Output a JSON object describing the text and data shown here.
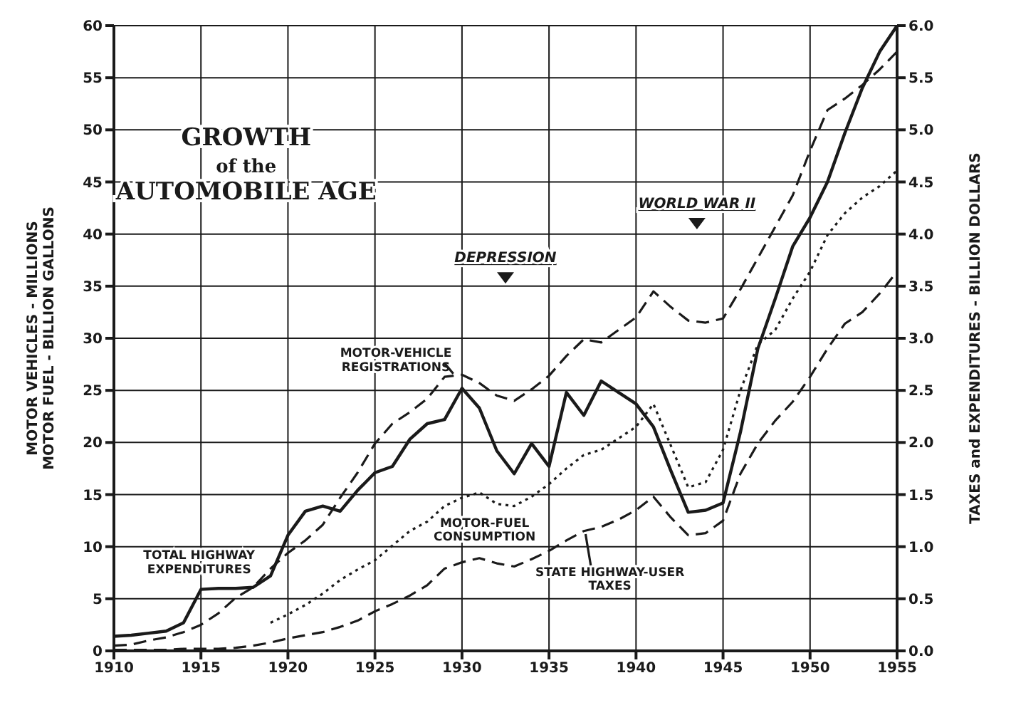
{
  "chart_data": {
    "type": "line",
    "title": "GROWTH\nof the\nAUTOMOBILE AGE",
    "ylabel": "MOTOR VEHICLES - MILLIONS\nMOTOR FUEL - BILLION GALLONS",
    "y2label": "TAXES and EXPENDITURES - BILLION DOLLARS",
    "annotations": [
      "DEPRESSION",
      "WORLD WAR II"
    ],
    "x": [
      1910,
      1911,
      1912,
      1913,
      1914,
      1915,
      1916,
      1917,
      1918,
      1919,
      1920,
      1921,
      1922,
      1923,
      1924,
      1925,
      1926,
      1927,
      1928,
      1929,
      1930,
      1931,
      1932,
      1933,
      1934,
      1935,
      1936,
      1937,
      1938,
      1939,
      1940,
      1941,
      1942,
      1943,
      1944,
      1945,
      1946,
      1947,
      1948,
      1949,
      1950,
      1951,
      1952,
      1953,
      1954,
      1955
    ],
    "series": [
      {
        "name": "MOTOR-VEHICLE\nREGISTRATIONS",
        "color": "#1a1a1a",
        "line_style": "dashed",
        "values": [
          0.5,
          0.6,
          1.0,
          1.3,
          1.8,
          2.5,
          3.6,
          5.1,
          6.1,
          7.9,
          9.4,
          10.6,
          12.1,
          14.7,
          17.1,
          19.9,
          21.8,
          22.9,
          24.2,
          26.3,
          26.5,
          25.7,
          24.5,
          24.0,
          25.1,
          26.4,
          28.3,
          29.9,
          29.6,
          30.8,
          32.0,
          34.5,
          33.0,
          31.7,
          31.5,
          31.9,
          34.7,
          37.7,
          40.7,
          43.7,
          48.0,
          51.9,
          53.0,
          54.3,
          55.8,
          57.5
        ]
      },
      {
        "name": "MOTOR-FUEL\nCONSUMPTION",
        "color": "#1a1a1a",
        "line_style": "dotted",
        "values": [
          null,
          null,
          null,
          null,
          null,
          null,
          null,
          null,
          null,
          2.7,
          3.5,
          4.4,
          5.5,
          6.8,
          7.8,
          8.7,
          10.1,
          11.5,
          12.4,
          13.9,
          14.7,
          15.2,
          14.1,
          13.9,
          14.8,
          16.0,
          17.5,
          18.8,
          19.3,
          20.4,
          21.5,
          23.7,
          19.7,
          15.7,
          16.2,
          19.3,
          25.0,
          29.4,
          30.8,
          33.8,
          36.4,
          39.9,
          42.0,
          43.5,
          44.6,
          46.1
        ]
      },
      {
        "name": "TOTAL HIGHWAY\nEXPENDITURES",
        "color": "#1a1a1a",
        "line_style": "solid",
        "axis": "y2",
        "values": [
          0.14,
          0.15,
          0.17,
          0.19,
          0.27,
          0.59,
          0.6,
          0.6,
          0.61,
          0.72,
          1.11,
          1.34,
          1.39,
          1.34,
          1.54,
          1.71,
          1.77,
          2.03,
          2.18,
          2.22,
          2.52,
          2.33,
          1.92,
          1.7,
          1.99,
          1.77,
          2.48,
          2.26,
          2.59,
          2.48,
          2.37,
          2.15,
          1.73,
          1.33,
          1.35,
          1.42,
          2.1,
          2.9,
          3.38,
          3.88,
          4.16,
          4.5,
          4.97,
          5.4,
          5.75,
          6.0
        ]
      },
      {
        "name": "STATE HIGHWAY-USER\nTAXES",
        "color": "#1a1a1a",
        "line_style": "dashed",
        "axis": "y2",
        "values": [
          0.01,
          0.01,
          0.01,
          0.01,
          0.02,
          0.02,
          0.02,
          0.03,
          0.05,
          0.08,
          0.12,
          0.15,
          0.18,
          0.23,
          0.29,
          0.38,
          0.45,
          0.53,
          0.63,
          0.79,
          0.85,
          0.89,
          0.84,
          0.81,
          0.88,
          0.96,
          1.06,
          1.15,
          1.19,
          1.26,
          1.35,
          1.48,
          1.28,
          1.11,
          1.13,
          1.25,
          1.7,
          1.99,
          2.21,
          2.39,
          2.63,
          2.9,
          3.14,
          3.25,
          3.43,
          3.64
        ]
      }
    ],
    "xlim": [
      1910,
      1955
    ],
    "xticks": [
      1910,
      1915,
      1920,
      1925,
      1930,
      1935,
      1940,
      1945,
      1950,
      1955
    ],
    "ylim": [
      0,
      60
    ],
    "yticks": [
      0,
      5,
      10,
      15,
      20,
      25,
      30,
      35,
      40,
      45,
      50,
      55,
      60
    ],
    "y2lim": [
      0,
      6
    ],
    "y2ticks": [
      {
        "value": 0,
        "label": "0.0"
      },
      0.5,
      {
        "value": 1,
        "label": "1.0"
      },
      1.5,
      {
        "value": 2,
        "label": "2.0"
      },
      2.5,
      {
        "value": 3,
        "label": "3.0"
      },
      3.5,
      {
        "value": 4,
        "label": "4.0"
      },
      4.5,
      {
        "value": 5,
        "label": "5.0"
      },
      5.5,
      {
        "value": 6,
        "label": "6.0"
      }
    ],
    "grid": true,
    "legend": false,
    "marker": "none"
  }
}
